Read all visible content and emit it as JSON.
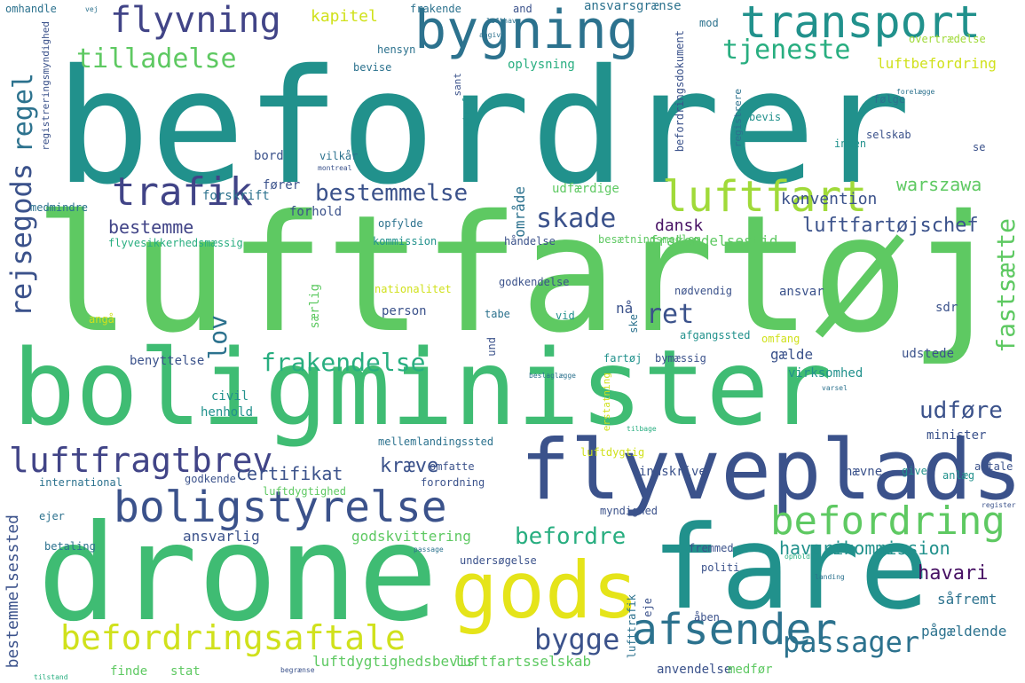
{
  "palette": {
    "background": "#ffffff",
    "dark_purple": "#471164",
    "indigo": "#3b528b",
    "blue": "#2c728e",
    "teal": "#21918c",
    "sea_green": "#28ae80",
    "green": "#5ec962",
    "lime": "#addc30",
    "yellow": "#e5e419"
  },
  "words": [
    {
      "text": "befordrer",
      "color": "#21918c"
    },
    {
      "text": "luftfartøj",
      "color": "#5ec962"
    },
    {
      "text": "boligminister",
      "color": "#3fbc73"
    },
    {
      "text": "drone",
      "color": "#3fbc73"
    },
    {
      "text": "fare",
      "color": "#21918c"
    },
    {
      "text": "flyveplads",
      "color": "#3b528b"
    },
    {
      "text": "gods",
      "color": "#e5e419"
    },
    {
      "text": "boligstyrelse",
      "color": "#3b528b"
    },
    {
      "text": "bygning",
      "color": "#2c728e"
    },
    {
      "text": "transport",
      "color": "#21918c"
    },
    {
      "text": "flyvning",
      "color": "#414487"
    },
    {
      "text": "befordringsaftale",
      "color": "#d0e11c"
    },
    {
      "text": "befordring",
      "color": "#5ec962"
    },
    {
      "text": "afsender",
      "color": "#2c728e"
    },
    {
      "text": "luftfart",
      "color": "#a0da39"
    },
    {
      "text": "trafik",
      "color": "#414487"
    },
    {
      "text": "luftfragtbrev",
      "color": "#414487"
    },
    {
      "text": "rejsegods",
      "color": "#3b528b"
    },
    {
      "text": "regel",
      "color": "#2c728e"
    },
    {
      "text": "tilladelse",
      "color": "#5ec962"
    },
    {
      "text": "tjeneste",
      "color": "#28ae80"
    },
    {
      "text": "bestemmelse",
      "color": "#3b528b"
    },
    {
      "text": "skade",
      "color": "#3b528b"
    },
    {
      "text": "fastsætte",
      "color": "#5ec962"
    },
    {
      "text": "frakendelse",
      "color": "#28ae80"
    },
    {
      "text": "ret",
      "color": "#3b528b"
    },
    {
      "text": "lov",
      "color": "#2c728e"
    },
    {
      "text": "passager",
      "color": "#2c728e"
    },
    {
      "text": "bygge",
      "color": "#3b528b"
    },
    {
      "text": "befordre",
      "color": "#28ae80"
    },
    {
      "text": "udføre",
      "color": "#3b528b"
    },
    {
      "text": "kræve",
      "color": "#3b528b"
    },
    {
      "text": "havarikommission",
      "color": "#21918c"
    },
    {
      "text": "havari",
      "color": "#471164"
    },
    {
      "text": "kapitel",
      "color": "#d0e11c"
    },
    {
      "text": "luftbefordring",
      "color": "#d0e11c"
    },
    {
      "text": "luftfartøjschef",
      "color": "#3b528b"
    },
    {
      "text": "konvention",
      "color": "#3b528b"
    },
    {
      "text": "warszawa",
      "color": "#5ec962"
    },
    {
      "text": "dansk",
      "color": "#471164"
    },
    {
      "text": "frakendelsestid",
      "color": "#5ec962"
    },
    {
      "text": "bestemme",
      "color": "#414487"
    },
    {
      "text": "certifikat",
      "color": "#3b528b"
    },
    {
      "text": "bestemmelsessted",
      "color": "#3b528b"
    },
    {
      "text": "godskvittering",
      "color": "#5ec962"
    },
    {
      "text": "luftdygtighedsbevis",
      "color": "#5ec962"
    },
    {
      "text": "luftfartsselskab",
      "color": "#5ec962"
    },
    {
      "text": "ansvarlig",
      "color": "#3b528b"
    },
    {
      "text": "pågældende",
      "color": "#2c728e"
    },
    {
      "text": "såfremt",
      "color": "#2c728e"
    },
    {
      "text": "ansvarsgrænse",
      "color": "#2c728e"
    },
    {
      "text": "befordringsdokument",
      "color": "#3b528b"
    },
    {
      "text": "overtrædelse",
      "color": "#a0da39"
    },
    {
      "text": "oplysning",
      "color": "#28ae80"
    },
    {
      "text": "bevise",
      "color": "#2c728e"
    },
    {
      "text": "hensyn",
      "color": "#2c728e"
    },
    {
      "text": "frakende",
      "color": "#2c728e"
    },
    {
      "text": "and",
      "color": "#3b528b"
    },
    {
      "text": "mod",
      "color": "#2c728e"
    },
    {
      "text": "område",
      "color": "#2c728e"
    },
    {
      "text": "udfærdige",
      "color": "#5ec962"
    },
    {
      "text": "fører",
      "color": "#3b528b"
    },
    {
      "text": "forskrift",
      "color": "#2c728e"
    },
    {
      "text": "forhold",
      "color": "#3b528b"
    },
    {
      "text": "bord",
      "color": "#3b528b"
    },
    {
      "text": "vilkår",
      "color": "#2c728e"
    },
    {
      "text": "flyvesikkerhedsmæssig",
      "color": "#28ae80"
    },
    {
      "text": "opfylde",
      "color": "#2c728e"
    },
    {
      "text": "kommission",
      "color": "#21918c"
    },
    {
      "text": "håndelse",
      "color": "#3b528b"
    },
    {
      "text": "besætningsmedlem",
      "color": "#5ec962"
    },
    {
      "text": "bevis",
      "color": "#21918c"
    },
    {
      "text": "følge",
      "color": "#2c728e"
    },
    {
      "text": "selskab",
      "color": "#3b528b"
    },
    {
      "text": "inden",
      "color": "#21918c"
    },
    {
      "text": "se",
      "color": "#3b528b"
    },
    {
      "text": "godkendelse",
      "color": "#3b528b"
    },
    {
      "text": "nødvendig",
      "color": "#3b528b"
    },
    {
      "text": "ansvar",
      "color": "#3b528b"
    },
    {
      "text": "sdr",
      "color": "#3b528b"
    },
    {
      "text": "nationalitet",
      "color": "#d0e11c"
    },
    {
      "text": "person",
      "color": "#3b528b"
    },
    {
      "text": "tabe",
      "color": "#2c728e"
    },
    {
      "text": "vid",
      "color": "#21918c"
    },
    {
      "text": "nå",
      "color": "#3b528b"
    },
    {
      "text": "særlig",
      "color": "#5ec962"
    },
    {
      "text": "angå",
      "color": "#d0e11c"
    },
    {
      "text": "benyttelse",
      "color": "#3b528b"
    },
    {
      "text": "afgangssted",
      "color": "#21918c"
    },
    {
      "text": "omfang",
      "color": "#d0e11c"
    },
    {
      "text": "udstede",
      "color": "#3b528b"
    },
    {
      "text": "fartøj",
      "color": "#21918c"
    },
    {
      "text": "bymæssig",
      "color": "#3b528b"
    },
    {
      "text": "gælde",
      "color": "#3b528b"
    },
    {
      "text": "virksomhed",
      "color": "#21918c"
    },
    {
      "text": "civil",
      "color": "#21918c"
    },
    {
      "text": "henhold",
      "color": "#21918c"
    },
    {
      "text": "erstatning",
      "color": "#d0e11c"
    },
    {
      "text": "luftdygtig",
      "color": "#d0e11c"
    },
    {
      "text": "mellemlandingssted",
      "color": "#2c728e"
    },
    {
      "text": "indskrive",
      "color": "#3b528b"
    },
    {
      "text": "nævne",
      "color": "#3b528b"
    },
    {
      "text": "minister",
      "color": "#3b528b"
    },
    {
      "text": "give",
      "color": "#21918c"
    },
    {
      "text": "anlæg",
      "color": "#21918c"
    },
    {
      "text": "aftale",
      "color": "#3b528b"
    },
    {
      "text": "international",
      "color": "#2c728e"
    },
    {
      "text": "godkende",
      "color": "#3b528b"
    },
    {
      "text": "luftdygtighed",
      "color": "#5ec962"
    },
    {
      "text": "omfatte",
      "color": "#3b528b"
    },
    {
      "text": "forordning",
      "color": "#3b528b"
    },
    {
      "text": "myndighed",
      "color": "#3b528b"
    },
    {
      "text": "ejer",
      "color": "#2c728e"
    },
    {
      "text": "betaling",
      "color": "#2c728e"
    },
    {
      "text": "fremmed",
      "color": "#3b528b"
    },
    {
      "text": "politi",
      "color": "#3b528b"
    },
    {
      "text": "undersøgelse",
      "color": "#3b528b"
    },
    {
      "text": "eje",
      "color": "#3b528b"
    },
    {
      "text": "lufttrafik",
      "color": "#2c728e"
    },
    {
      "text": "åben",
      "color": "#3b528b"
    },
    {
      "text": "stat",
      "color": "#5ec962"
    },
    {
      "text": "finde",
      "color": "#5ec962"
    },
    {
      "text": "anvendelse",
      "color": "#3b528b"
    },
    {
      "text": "medfør",
      "color": "#5ec962"
    },
    {
      "text": "omhandle",
      "color": "#2c728e"
    },
    {
      "text": "medmindre",
      "color": "#2c728e"
    },
    {
      "text": "registreringsmyndighed",
      "color": "#3b528b"
    },
    {
      "text": "registrere",
      "color": "#2c728e"
    },
    {
      "text": "straf",
      "color": "#21918c"
    },
    {
      "text": "sant",
      "color": "#3b528b"
    },
    {
      "text": "und",
      "color": "#3b528b"
    },
    {
      "text": "ske",
      "color": "#2c728e"
    },
    {
      "text": "lufthavn",
      "color": "#2c728e"
    },
    {
      "text": "angive",
      "color": "#2c728e"
    },
    {
      "text": "tilbage",
      "color": "#28ae80"
    },
    {
      "text": "beslaglægge",
      "color": "#2c728e"
    },
    {
      "text": "begrænse",
      "color": "#3b528b"
    },
    {
      "text": "register",
      "color": "#3b528b"
    },
    {
      "text": "varsel",
      "color": "#2c728e"
    },
    {
      "text": "forelægge",
      "color": "#2c728e"
    },
    {
      "text": "ophold",
      "color": "#28ae80"
    },
    {
      "text": "montreal",
      "color": "#3b528b"
    },
    {
      "text": "landing",
      "color": "#2c728e"
    },
    {
      "text": "passage",
      "color": "#2c728e"
    },
    {
      "text": "tilstand",
      "color": "#28ae80"
    },
    {
      "text": "vej",
      "color": "#2c728e"
    }
  ]
}
